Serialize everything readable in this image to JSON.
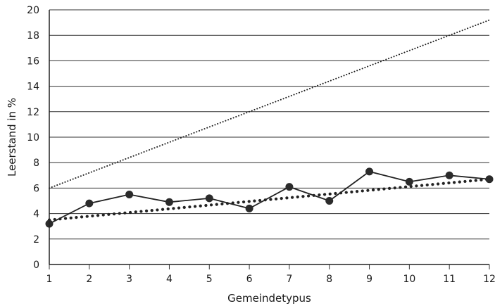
{
  "chart_data": {
    "type": "line",
    "title": "",
    "xlabel": "Gemeindetypus",
    "ylabel": "Leerstand in %",
    "x": [
      1,
      2,
      3,
      4,
      5,
      6,
      7,
      8,
      9,
      10,
      11,
      12
    ],
    "xlim": [
      1,
      12
    ],
    "ylim": [
      0,
      20
    ],
    "xticks": [
      "1",
      "2",
      "3",
      "4",
      "5",
      "6",
      "7",
      "8",
      "9",
      "10",
      "11",
      "12"
    ],
    "yticks": [
      "0",
      "2",
      "4",
      "6",
      "8",
      "10",
      "12",
      "14",
      "16",
      "18",
      "20"
    ],
    "grid": "horizontal",
    "legend": "none",
    "series": [
      {
        "style": "solid line with markers",
        "color": "#222222",
        "values": [
          3.2,
          4.8,
          5.5,
          4.9,
          5.2,
          4.4,
          6.1,
          5.0,
          7.3,
          6.5,
          7.0,
          6.7
        ]
      },
      {
        "style": "dotted trend line (bold)",
        "color": "#222222",
        "values": [
          3.5,
          null,
          null,
          null,
          null,
          null,
          null,
          null,
          null,
          null,
          null,
          6.7
        ]
      },
      {
        "style": "dotted trend line (fine)",
        "color": "#222222",
        "values": [
          6.0,
          null,
          null,
          null,
          null,
          null,
          null,
          null,
          null,
          null,
          null,
          19.2
        ]
      }
    ]
  }
}
